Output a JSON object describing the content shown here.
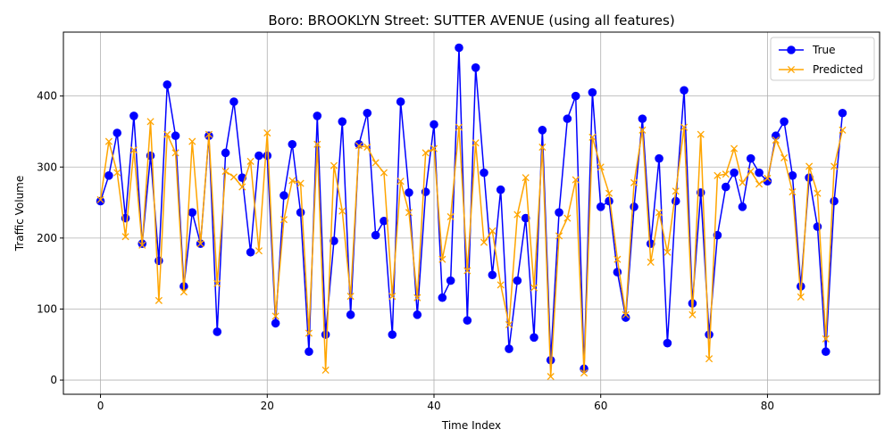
{
  "chart_data": {
    "type": "line",
    "title": "Boro: BROOKLYN Street: SUTTER AVENUE (using all features)",
    "xlabel": "Time Index",
    "ylabel": "Traffic Volume",
    "xlim": [
      -4.45,
      93.45
    ],
    "ylim": [
      -20,
      490
    ],
    "xticks": [
      0,
      20,
      40,
      60,
      80
    ],
    "yticks": [
      0,
      100,
      200,
      300,
      400
    ],
    "grid": true,
    "legend_position": "top-right",
    "x": [
      0,
      1,
      2,
      3,
      4,
      5,
      6,
      7,
      8,
      9,
      10,
      11,
      12,
      13,
      14,
      15,
      16,
      17,
      18,
      19,
      20,
      21,
      22,
      23,
      24,
      25,
      26,
      27,
      28,
      29,
      30,
      31,
      32,
      33,
      34,
      35,
      36,
      37,
      38,
      39,
      40,
      41,
      42,
      43,
      44,
      45,
      46,
      47,
      48,
      49,
      50,
      51,
      52,
      53,
      54,
      55,
      56,
      57,
      58,
      59,
      60,
      61,
      62,
      63,
      64,
      65,
      66,
      67,
      68,
      69,
      70,
      71,
      72,
      73,
      74,
      75,
      76,
      77,
      78,
      79,
      80,
      81,
      82,
      83,
      84,
      85,
      86,
      87,
      88,
      89
    ],
    "series": [
      {
        "name": "True",
        "color": "#0000ff",
        "marker": "circle",
        "values": [
          252,
          288,
          348,
          228,
          372,
          192,
          316,
          168,
          416,
          344,
          132,
          236,
          192,
          344,
          68,
          320,
          392,
          285,
          180,
          316,
          316,
          80,
          260,
          332,
          236,
          40,
          372,
          64,
          196,
          364,
          92,
          332,
          376,
          204,
          224,
          64,
          392,
          264,
          92,
          265,
          360,
          116,
          140,
          468,
          84,
          440,
          292,
          148,
          268,
          44,
          140,
          228,
          60,
          352,
          28,
          236,
          368,
          400,
          16,
          405,
          244,
          252,
          152,
          88,
          244,
          368,
          192,
          312,
          52,
          252,
          408,
          108,
          264,
          64,
          204,
          272,
          292,
          244,
          312,
          292,
          280,
          344,
          364,
          288,
          132,
          285,
          216,
          40,
          252,
          376
        ]
      },
      {
        "name": "Predicted",
        "color": "#ffa500",
        "marker": "x",
        "values": [
          254,
          336,
          292,
          202,
          324,
          190,
          364,
          112,
          346,
          320,
          124,
          336,
          192,
          346,
          136,
          294,
          286,
          272,
          308,
          182,
          348,
          90,
          226,
          281,
          277,
          66,
          332,
          14,
          302,
          238,
          118,
          330,
          328,
          306,
          292,
          118,
          280,
          236,
          116,
          320,
          326,
          170,
          230,
          356,
          154,
          334,
          194,
          210,
          134,
          78,
          233,
          285,
          130,
          328,
          5,
          203,
          228,
          282,
          10,
          342,
          300,
          263,
          170,
          92,
          278,
          352,
          166,
          236,
          180,
          266,
          356,
          92,
          346,
          30,
          288,
          290,
          326,
          278,
          294,
          276,
          284,
          338,
          313,
          265,
          117,
          301,
          263,
          58,
          301,
          352
        ]
      }
    ]
  }
}
